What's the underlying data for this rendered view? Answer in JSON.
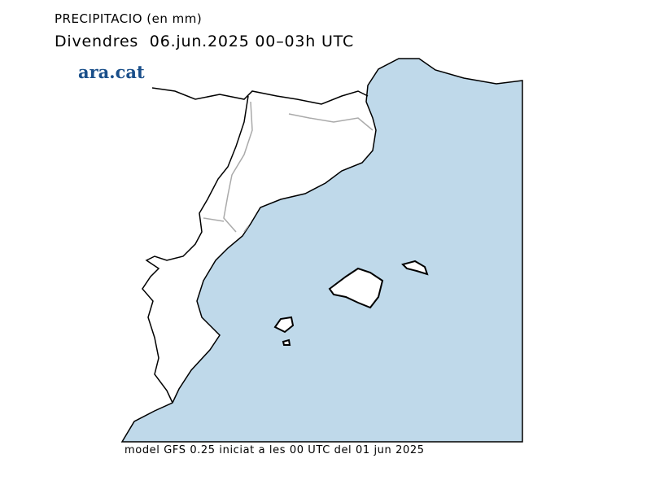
{
  "header": {
    "title": "PRECIPITACIO (en mm)",
    "subtitle": "Divendres  06.jun.2025 00–03h UTC"
  },
  "logo": "ara.cat",
  "footer": "model GFS 0.25 iniciat a les 00 UTC del 01 jun 2025"
}
